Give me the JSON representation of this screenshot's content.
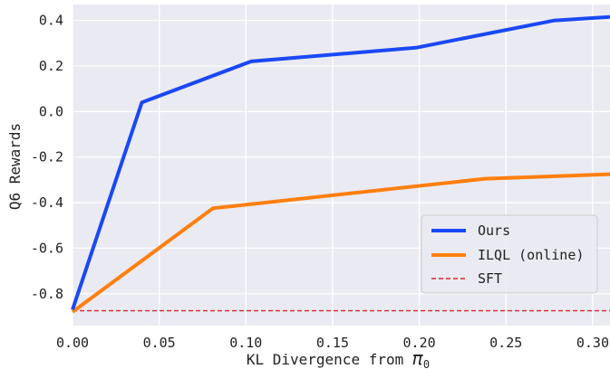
{
  "chart_data": {
    "type": "line",
    "xlabel": "KL Divergence from",
    "xlabel_symbol": "π",
    "xlabel_subscript": "0",
    "ylabel": "Q6 Rewards",
    "xlim": [
      0.0,
      0.31
    ],
    "ylim": [
      -0.94,
      0.47
    ],
    "xticks": [
      "0.00",
      "0.05",
      "0.10",
      "0.15",
      "0.20",
      "0.25",
      "0.30"
    ],
    "yticks": [
      "-0.8",
      "-0.6",
      "-0.4",
      "-0.2",
      "0.0",
      "0.2",
      "0.4"
    ],
    "grid": true,
    "background": "#eaeaf2",
    "legend_position": "lower-right",
    "series": [
      {
        "name": "Ours",
        "color": "#1a48f5",
        "style": "solid",
        "x": [
          0.0,
          0.04,
          0.103,
          0.198,
          0.278,
          0.31
        ],
        "y": [
          -0.87,
          0.04,
          0.22,
          0.28,
          0.4,
          0.415
        ]
      },
      {
        "name": "ILQL (online)",
        "color": "#ff7f0e",
        "style": "solid",
        "x": [
          0.0,
          0.081,
          0.238,
          0.31
        ],
        "y": [
          -0.88,
          -0.425,
          -0.295,
          -0.275
        ]
      },
      {
        "name": "SFT",
        "color": "#d62728",
        "style": "dashed",
        "x": [
          0.0,
          0.31
        ],
        "y": [
          -0.875,
          -0.875
        ]
      }
    ]
  }
}
